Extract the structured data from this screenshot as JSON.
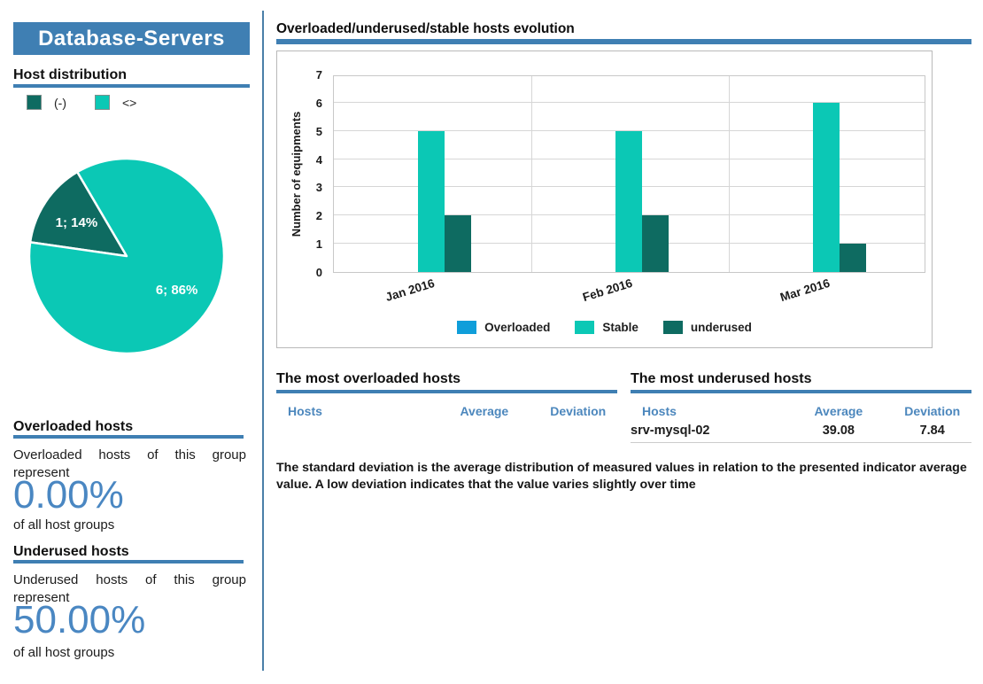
{
  "colors": {
    "accent_blue": "#3f7fb3",
    "header_text_blue": "#4c87bd",
    "big_number_blue": "#4a87c2",
    "overloaded_blue": "#0f9eda",
    "stable_teal": "#0bc8b5",
    "underused_teal": "#0e6b61"
  },
  "left_panel": {
    "group_title": "Database-Servers",
    "overloaded_summary": {
      "heading": "Overloaded hosts",
      "text": "Overloaded hosts of this group represent",
      "value": "0.00%",
      "suffix": "of all host groups"
    },
    "underused_summary": {
      "heading": "Underused hosts",
      "text": "Underused hosts of this group represent",
      "value": "50.00%",
      "suffix": "of all host groups"
    }
  },
  "tables": {
    "overloaded": {
      "heading": "The most overloaded hosts",
      "headers": [
        "Hosts",
        "Average",
        "Deviation"
      ],
      "rows": []
    },
    "underused": {
      "heading": "The most underused hosts",
      "headers": [
        "Hosts",
        "Average",
        "Deviation"
      ],
      "rows": [
        [
          "srv-mysql-02",
          "39.08",
          "7.84"
        ]
      ]
    }
  },
  "footnote": "The standard deviation is the average distribution of measured values in relation to the presented indicator average value. A low  deviation indicates that the value varies slightly over time",
  "chart_data": [
    {
      "type": "pie",
      "title": "Host distribution",
      "labels": [
        "(-)",
        "<>"
      ],
      "values": [
        1,
        6
      ],
      "value_labels": [
        "1; 14%",
        "6; 86%"
      ],
      "colors": [
        "#0e6b61",
        "#0bc8b5"
      ],
      "start_angle": 120.4,
      "legend_position": "top"
    },
    {
      "type": "bar",
      "title": "Overloaded/underused/stable hosts evolution",
      "categories": [
        "Jan 2016",
        "Feb 2016",
        "Mar 2016"
      ],
      "series": [
        {
          "name": "Overloaded",
          "color": "#0f9eda",
          "values": [
            0,
            0,
            0
          ]
        },
        {
          "name": "Stable",
          "color": "#0bc8b5",
          "values": [
            5,
            5,
            6
          ]
        },
        {
          "name": "underused",
          "color": "#0e6b61",
          "values": [
            2,
            2,
            1
          ]
        }
      ],
      "xlabel": "",
      "ylabel": "Number of equipments",
      "ylim": [
        0,
        7
      ],
      "yticks": [
        0,
        1,
        2,
        3,
        4,
        5,
        6,
        7
      ],
      "grid": true,
      "legend_position": "bottom"
    }
  ]
}
